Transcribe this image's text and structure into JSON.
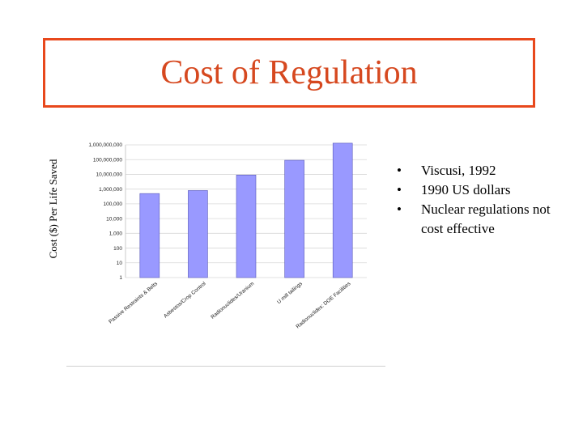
{
  "title": "Cost of Regulation",
  "bullets": [
    {
      "text": "Viscusi, 1992"
    },
    {
      "text": "1990 US dollars"
    },
    {
      "text": "Nuclear regulations not cost effective"
    }
  ],
  "bullet_char": "•",
  "colors": {
    "title": "#d6481f",
    "title_border": "#e8481c",
    "bar_fill": "#9999ff",
    "bar_stroke": "#5a5ab8",
    "grid": "#d8d8d8"
  },
  "chart_data": {
    "type": "bar",
    "ylabel": "Cost ($) Per Life Saved",
    "yscale": "log",
    "ylim": [
      1,
      1000000000
    ],
    "yticks": [
      1,
      10,
      100,
      1000,
      10000,
      100000,
      1000000,
      10000000,
      100000000,
      1000000000
    ],
    "ytick_labels": [
      "1",
      "10",
      "100",
      "1,000",
      "10,000",
      "100,000",
      "1,000,000",
      "10,000,000",
      "100,000,000",
      "1,000,000,000"
    ],
    "grid": true,
    "categories": [
      "Passive Restraints & Belts",
      "Asbestos/Crop Control",
      "Radionuclides/Uranium",
      "U mill tailings",
      "Radionuclides: DOE Facilities"
    ],
    "values": [
      500000,
      800000,
      9000000,
      90000000,
      1300000000
    ]
  }
}
